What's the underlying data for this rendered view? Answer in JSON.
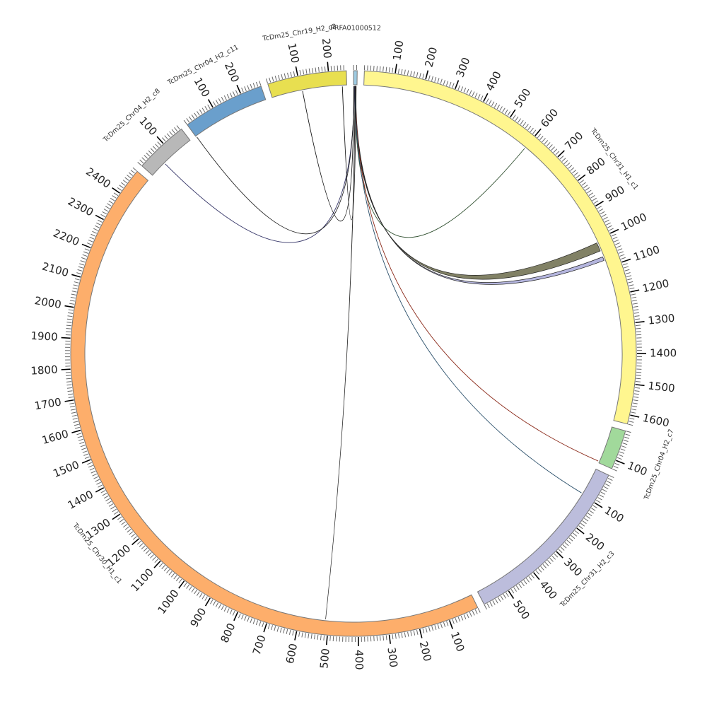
{
  "chart_data": {
    "type": "circos",
    "units_per_major_tick": 100,
    "units_per_minor_tick": 10,
    "segments": [
      {
        "name": "PRFA01000512",
        "length": 12,
        "color": "#9ecae1"
      },
      {
        "name": "TcDm25_Chr31_H1_c1",
        "length": 1630,
        "color": "#fff68f"
      },
      {
        "name": "TcDm25_Chr04_H2_c7",
        "length": 130,
        "color": "#a1d99b"
      },
      {
        "name": "TcDm25_Chr31_H2_c3",
        "length": 590,
        "color": "#bcbddc"
      },
      {
        "name": "TcDm25_Chr30_H1_c1",
        "length": 2490,
        "color": "#fdae6b"
      },
      {
        "name": "TcDm25_Chr04_H2_c8",
        "length": 175,
        "color": "#b8b8b8"
      },
      {
        "name": "TcDm25_Chr04_H2_c11",
        "length": 270,
        "color": "#6a9fcc"
      },
      {
        "name": "TcDm25_Chr19_H2_c2",
        "length": 258,
        "color": "#e8df50"
      }
    ],
    "links": [
      {
        "from": [
          0,
          5,
          5
        ],
        "to": [
          1,
          600,
          600
        ],
        "color": "#2f4f2f"
      },
      {
        "from": [
          0,
          4,
          7
        ],
        "to": [
          1,
          1010,
          1040
        ],
        "color": "#6b6b4a"
      },
      {
        "from": [
          0,
          6,
          8
        ],
        "to": [
          1,
          1062,
          1075
        ],
        "color": "#a7a8d8"
      },
      {
        "from": [
          0,
          7,
          7
        ],
        "to": [
          2,
          125,
          125
        ],
        "color": "#8b2a1a"
      },
      {
        "from": [
          0,
          6,
          6
        ],
        "to": [
          3,
          95,
          95
        ],
        "color": "#2a4f6a"
      },
      {
        "from": [
          0,
          5,
          6
        ],
        "to": [
          4,
          511,
          511
        ],
        "color": "#6b6b00"
      },
      {
        "from": [
          0,
          3,
          3
        ],
        "to": [
          5,
          58,
          58
        ],
        "color": "#333366"
      },
      {
        "from": [
          0,
          2,
          2
        ],
        "to": [
          6,
          2,
          2
        ],
        "color": "#222222"
      },
      {
        "from": [
          0,
          1,
          1
        ],
        "to": [
          7,
          106,
          106
        ],
        "color": "#111111"
      },
      {
        "from": [
          0,
          9,
          9
        ],
        "to": [
          7,
          243,
          243
        ],
        "color": "#111111"
      }
    ]
  }
}
